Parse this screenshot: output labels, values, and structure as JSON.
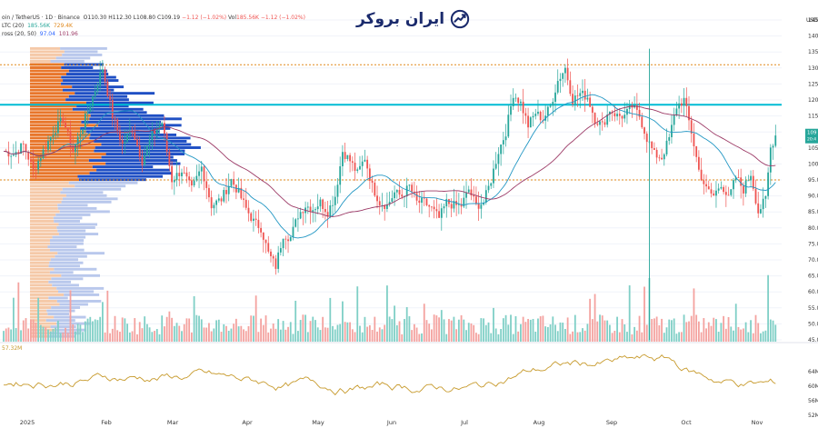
{
  "header": {
    "symbol_line": "oin / TetherUS · 1D · Binance",
    "ohlc": {
      "o": "O110.30",
      "h": "H112.30",
      "l": "L108.80",
      "c": "C109.19",
      "chg": "−1.12 (−1.02%)"
    },
    "vol_label": "Vol",
    "vol_value": "185.56K",
    "vol_chg": "−1.12 (−1.02%)",
    "vol_ltc_label": "LTC (20)",
    "vol_ltc_v1": "185.56K",
    "vol_ltc_v2": "729.4K",
    "cross_label": "ross (20, 50)",
    "cross_v1": "97.04",
    "cross_v2": "101.96",
    "osc_value": "57.32M"
  },
  "brand": {
    "name": "ایران بروکر",
    "color": "#1a2a6c"
  },
  "currency": "USD",
  "price_tag": {
    "last": "109",
    "sub": "20:4"
  },
  "colors": {
    "up": "#26a69a",
    "down": "#ef5350",
    "poc": "#00bcd4",
    "va_up": "#1f4fc4",
    "va_down": "#e8762b",
    "ma_fast": "#2196c3",
    "ma_slow": "#9c3a66",
    "osc": "#c79a2c",
    "level": "#e0881b"
  },
  "chart_data": {
    "type": "candlestick",
    "x_axis": {
      "labels": [
        "2025",
        "Feb",
        "Mar",
        "Apr",
        "May",
        "Jun",
        "Jul",
        "Aug",
        "Sep",
        "Oct",
        "Nov"
      ]
    },
    "y_axis": {
      "min": 45,
      "max": 145,
      "ticks": [
        145,
        140,
        135,
        130,
        125,
        120,
        115,
        110,
        105,
        100,
        95,
        90,
        85,
        80,
        75,
        70,
        65,
        60,
        55,
        50,
        45
      ]
    },
    "osc_axis": {
      "ticks": [
        "64M",
        "60M",
        "56M",
        "52M"
      ]
    },
    "levels": [
      131,
      118.5,
      95
    ],
    "price_path": [
      [
        0,
        104
      ],
      [
        4,
        103
      ],
      [
        8,
        106
      ],
      [
        12,
        98
      ],
      [
        16,
        104
      ],
      [
        20,
        110
      ],
      [
        24,
        114
      ],
      [
        28,
        104
      ],
      [
        32,
        112
      ],
      [
        36,
        121
      ],
      [
        40,
        130
      ],
      [
        44,
        115
      ],
      [
        48,
        106
      ],
      [
        52,
        111
      ],
      [
        56,
        101
      ],
      [
        60,
        109
      ],
      [
        64,
        113
      ],
      [
        68,
        95
      ],
      [
        72,
        98
      ],
      [
        76,
        92
      ],
      [
        80,
        99
      ],
      [
        84,
        87
      ],
      [
        88,
        89
      ],
      [
        92,
        95
      ],
      [
        95,
        91
      ],
      [
        98,
        86
      ],
      [
        101,
        82
      ],
      [
        104,
        80
      ],
      [
        107,
        72
      ],
      [
        110,
        68
      ],
      [
        113,
        78
      ],
      [
        116,
        77
      ],
      [
        119,
        84
      ],
      [
        122,
        87
      ],
      [
        125,
        86
      ],
      [
        128,
        88
      ],
      [
        131,
        85
      ],
      [
        134,
        90
      ],
      [
        137,
        104
      ],
      [
        140,
        101
      ],
      [
        143,
        97
      ],
      [
        146,
        102
      ],
      [
        149,
        93
      ],
      [
        152,
        88
      ],
      [
        155,
        87
      ],
      [
        158,
        91
      ],
      [
        161,
        90
      ],
      [
        164,
        93
      ],
      [
        167,
        88
      ],
      [
        170,
        88
      ],
      [
        173,
        86
      ],
      [
        176,
        83
      ],
      [
        179,
        88
      ],
      [
        182,
        87
      ],
      [
        185,
        87
      ],
      [
        188,
        92
      ],
      [
        191,
        87
      ],
      [
        194,
        88
      ],
      [
        197,
        95
      ],
      [
        200,
        104
      ],
      [
        203,
        110
      ],
      [
        206,
        122
      ],
      [
        209,
        119
      ],
      [
        212,
        112
      ],
      [
        215,
        116
      ],
      [
        218,
        114
      ],
      [
        221,
        118
      ],
      [
        224,
        126
      ],
      [
        227,
        130
      ],
      [
        230,
        120
      ],
      [
        233,
        122
      ],
      [
        236,
        121
      ],
      [
        239,
        114
      ],
      [
        242,
        112
      ],
      [
        245,
        117
      ],
      [
        248,
        115
      ],
      [
        251,
        115
      ],
      [
        254,
        118
      ],
      [
        257,
        115
      ],
      [
        260,
        108
      ],
      [
        263,
        103
      ],
      [
        266,
        102
      ],
      [
        269,
        108
      ],
      [
        272,
        118
      ],
      [
        275,
        120
      ],
      [
        278,
        110
      ],
      [
        281,
        98
      ],
      [
        284,
        92
      ],
      [
        287,
        90
      ],
      [
        290,
        94
      ],
      [
        293,
        89
      ],
      [
        296,
        96
      ],
      [
        299,
        92
      ],
      [
        302,
        97
      ],
      [
        305,
        85
      ],
      [
        308,
        89
      ],
      [
        310,
        105
      ],
      [
        312,
        109
      ]
    ]
  }
}
